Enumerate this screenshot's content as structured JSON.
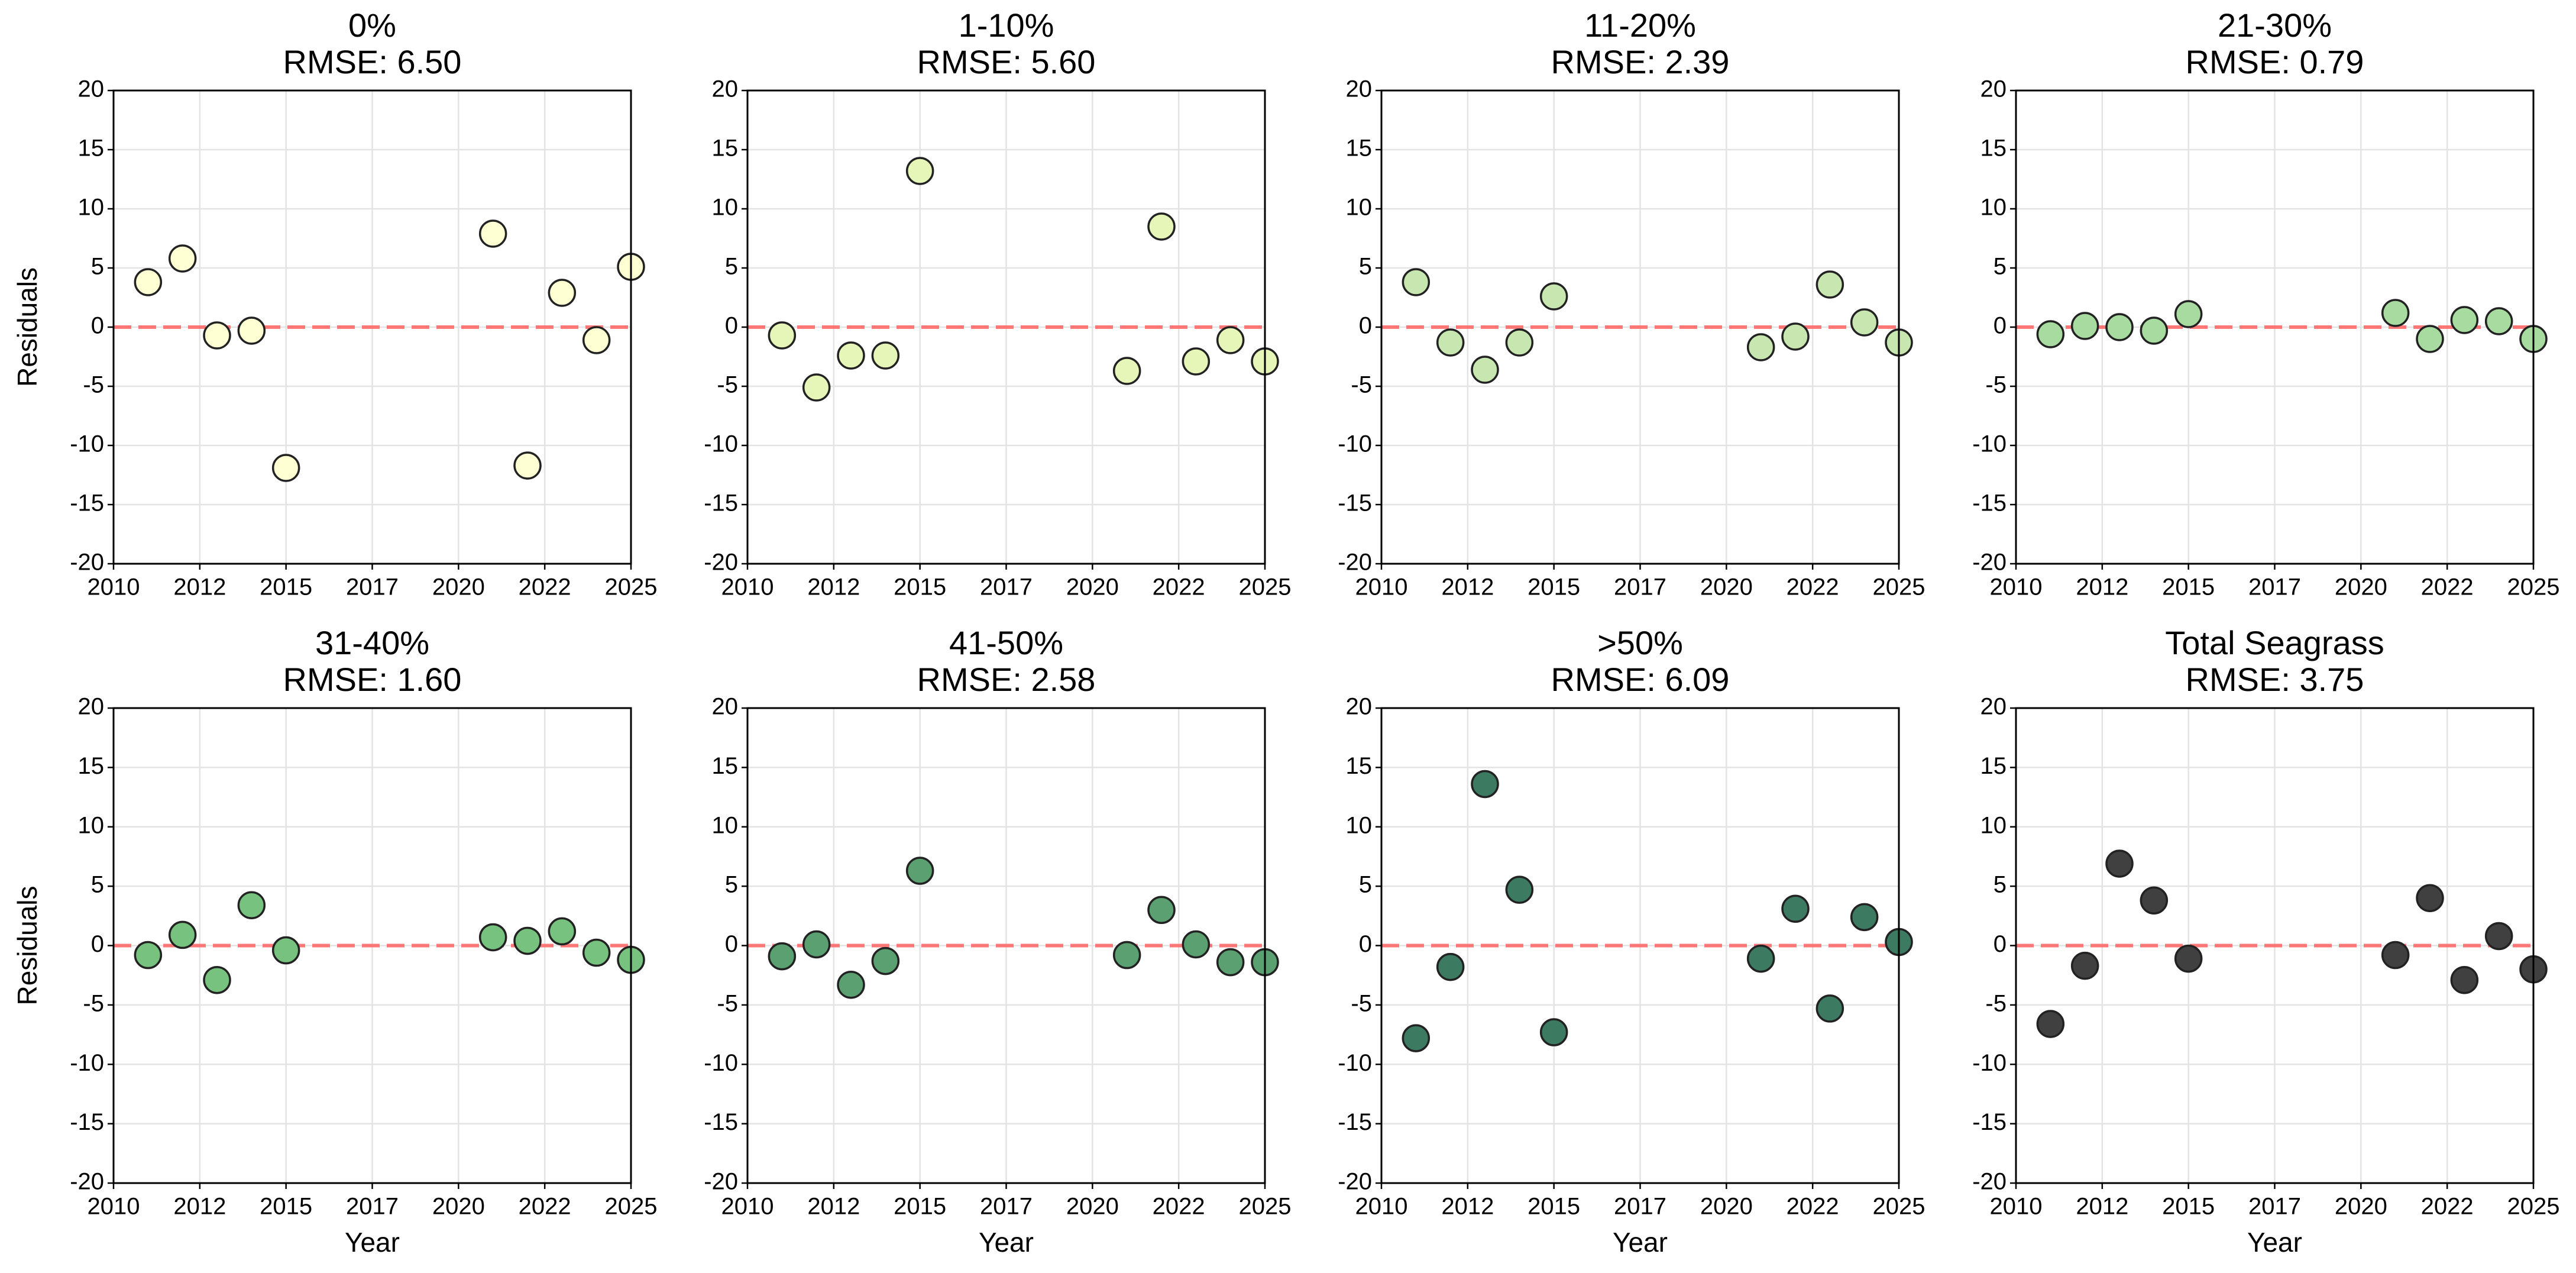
{
  "chart_data": [
    {
      "type": "scatter",
      "title": "0%",
      "subtitle": "RMSE: 6.50",
      "ylabel": "Residuals",
      "color": "#ffffd4",
      "x": [
        2011,
        2012,
        2013,
        2014,
        2015,
        2021,
        2022,
        2023,
        2024,
        2025
      ],
      "values": [
        3.8,
        5.8,
        -0.7,
        -0.3,
        -11.9,
        7.9,
        -11.7,
        2.9,
        -1.1,
        5.1
      ],
      "xlim": [
        2010,
        2025
      ],
      "xticks": [
        2010,
        {
          "value": 2012.5,
          "label": "2012"
        },
        2015,
        {
          "value": 2017.5,
          "label": "2017"
        },
        2020,
        {
          "value": 2022.5,
          "label": "2022"
        },
        2025
      ],
      "ylim": [
        -20,
        20
      ],
      "yticks": [
        -20,
        -15,
        -10,
        -5,
        0,
        5,
        10,
        15,
        20
      ],
      "grid": true,
      "reference_line": {
        "y": 0,
        "color": "#ff6b6b"
      }
    },
    {
      "type": "scatter",
      "title": "1-10%",
      "subtitle": "RMSE: 5.60",
      "color": "#e6f5b8",
      "x": [
        2011,
        2012,
        2013,
        2014,
        2015,
        2021,
        2022,
        2023,
        2024,
        2025
      ],
      "values": [
        -0.7,
        -5.1,
        -2.4,
        -2.4,
        13.2,
        -3.7,
        8.5,
        -2.9,
        -1.1,
        -2.9
      ],
      "xlim": [
        2010,
        2025
      ],
      "xticks": [
        2010,
        {
          "value": 2012.5,
          "label": "2012"
        },
        2015,
        {
          "value": 2017.5,
          "label": "2017"
        },
        2020,
        {
          "value": 2022.5,
          "label": "2022"
        },
        2025
      ],
      "ylim": [
        -20,
        20
      ],
      "yticks": [
        -20,
        -15,
        -10,
        -5,
        0,
        5,
        10,
        15,
        20
      ],
      "grid": true,
      "reference_line": {
        "y": 0,
        "color": "#ff6b6b"
      }
    },
    {
      "type": "scatter",
      "title": "11-20%",
      "subtitle": "RMSE: 2.39",
      "color": "#c8e6b0",
      "x": [
        2011,
        2012,
        2013,
        2014,
        2015,
        2021,
        2022,
        2023,
        2024,
        2025
      ],
      "values": [
        3.8,
        -1.3,
        -3.6,
        -1.3,
        2.6,
        -1.7,
        -0.8,
        3.6,
        0.4,
        -1.3
      ],
      "xlim": [
        2010,
        2025
      ],
      "xticks": [
        2010,
        {
          "value": 2012.5,
          "label": "2012"
        },
        2015,
        {
          "value": 2017.5,
          "label": "2017"
        },
        2020,
        {
          "value": 2022.5,
          "label": "2022"
        },
        2025
      ],
      "ylim": [
        -20,
        20
      ],
      "yticks": [
        -20,
        -15,
        -10,
        -5,
        0,
        5,
        10,
        15,
        20
      ],
      "grid": true,
      "reference_line": {
        "y": 0,
        "color": "#ff6b6b"
      }
    },
    {
      "type": "scatter",
      "title": "21-30%",
      "subtitle": "RMSE: 0.79",
      "color": "#a8dba0",
      "x": [
        2011,
        2012,
        2013,
        2014,
        2015,
        2021,
        2022,
        2023,
        2024,
        2025
      ],
      "values": [
        -0.6,
        0.1,
        0,
        -0.3,
        1.1,
        1.2,
        -1.0,
        0.6,
        0.5,
        -1.0
      ],
      "xlim": [
        2010,
        2025
      ],
      "xticks": [
        2010,
        {
          "value": 2012.5,
          "label": "2012"
        },
        2015,
        {
          "value": 2017.5,
          "label": "2017"
        },
        2020,
        {
          "value": 2022.5,
          "label": "2022"
        },
        2025
      ],
      "ylim": [
        -20,
        20
      ],
      "yticks": [
        -20,
        -15,
        -10,
        -5,
        0,
        5,
        10,
        15,
        20
      ],
      "grid": true,
      "reference_line": {
        "y": 0,
        "color": "#ff6b6b"
      }
    },
    {
      "type": "scatter",
      "title": "31-40%",
      "subtitle": "RMSE: 1.60",
      "xlabel": "Year",
      "ylabel": "Residuals",
      "color": "#78c280",
      "x": [
        2011,
        2012,
        2013,
        2014,
        2015,
        2021,
        2022,
        2023,
        2024,
        2025
      ],
      "values": [
        -0.8,
        0.9,
        -2.9,
        3.4,
        -0.4,
        0.7,
        0.4,
        1.2,
        -0.6,
        -1.2
      ],
      "xlim": [
        2010,
        2025
      ],
      "xticks": [
        2010,
        {
          "value": 2012.5,
          "label": "2012"
        },
        2015,
        {
          "value": 2017.5,
          "label": "2017"
        },
        2020,
        {
          "value": 2022.5,
          "label": "2022"
        },
        2025
      ],
      "ylim": [
        -20,
        20
      ],
      "yticks": [
        -20,
        -15,
        -10,
        -5,
        0,
        5,
        10,
        15,
        20
      ],
      "grid": true,
      "reference_line": {
        "y": 0,
        "color": "#ff6b6b"
      }
    },
    {
      "type": "scatter",
      "title": "41-50%",
      "subtitle": "RMSE: 2.58",
      "xlabel": "Year",
      "color": "#5aa070",
      "x": [
        2011,
        2012,
        2013,
        2014,
        2015,
        2021,
        2022,
        2023,
        2024,
        2025
      ],
      "values": [
        -0.9,
        0.1,
        -3.3,
        -1.3,
        6.3,
        -0.8,
        3.0,
        0.1,
        -1.4,
        -1.4
      ],
      "xlim": [
        2010,
        2025
      ],
      "xticks": [
        2010,
        {
          "value": 2012.5,
          "label": "2012"
        },
        2015,
        {
          "value": 2017.5,
          "label": "2017"
        },
        2020,
        {
          "value": 2022.5,
          "label": "2022"
        },
        2025
      ],
      "ylim": [
        -20,
        20
      ],
      "yticks": [
        -20,
        -15,
        -10,
        -5,
        0,
        5,
        10,
        15,
        20
      ],
      "grid": true,
      "reference_line": {
        "y": 0,
        "color": "#ff6b6b"
      }
    },
    {
      "type": "scatter",
      "title": ">50%",
      "subtitle": "RMSE: 6.09",
      "xlabel": "Year",
      "color": "#3d7a62",
      "x": [
        2011,
        2012,
        2013,
        2014,
        2015,
        2021,
        2022,
        2023,
        2024,
        2025
      ],
      "values": [
        -7.8,
        -1.8,
        13.6,
        4.7,
        -7.3,
        -1.1,
        3.1,
        -5.3,
        2.4,
        0.3
      ],
      "xlim": [
        2010,
        2025
      ],
      "xticks": [
        2010,
        {
          "value": 2012.5,
          "label": "2012"
        },
        2015,
        {
          "value": 2017.5,
          "label": "2017"
        },
        2020,
        {
          "value": 2022.5,
          "label": "2022"
        },
        2025
      ],
      "ylim": [
        -20,
        20
      ],
      "yticks": [
        -20,
        -15,
        -10,
        -5,
        0,
        5,
        10,
        15,
        20
      ],
      "grid": true,
      "reference_line": {
        "y": 0,
        "color": "#ff6b6b"
      }
    },
    {
      "type": "scatter",
      "title": "Total Seagrass",
      "subtitle": "RMSE: 3.75",
      "xlabel": "Year",
      "color": "#404040",
      "x": [
        2011,
        2012,
        2013,
        2014,
        2015,
        2021,
        2022,
        2023,
        2024,
        2025
      ],
      "values": [
        -6.6,
        -1.7,
        6.9,
        3.8,
        -1.1,
        -0.8,
        4.0,
        -2.9,
        0.8,
        -2.0
      ],
      "xlim": [
        2010,
        2025
      ],
      "xticks": [
        2010,
        {
          "value": 2012.5,
          "label": "2012"
        },
        2015,
        {
          "value": 2017.5,
          "label": "2017"
        },
        2020,
        {
          "value": 2022.5,
          "label": "2022"
        },
        2025
      ],
      "ylim": [
        -20,
        20
      ],
      "yticks": [
        -20,
        -15,
        -10,
        -5,
        0,
        5,
        10,
        15,
        20
      ],
      "grid": true,
      "reference_line": {
        "y": 0,
        "color": "#ff6b6b"
      }
    }
  ]
}
